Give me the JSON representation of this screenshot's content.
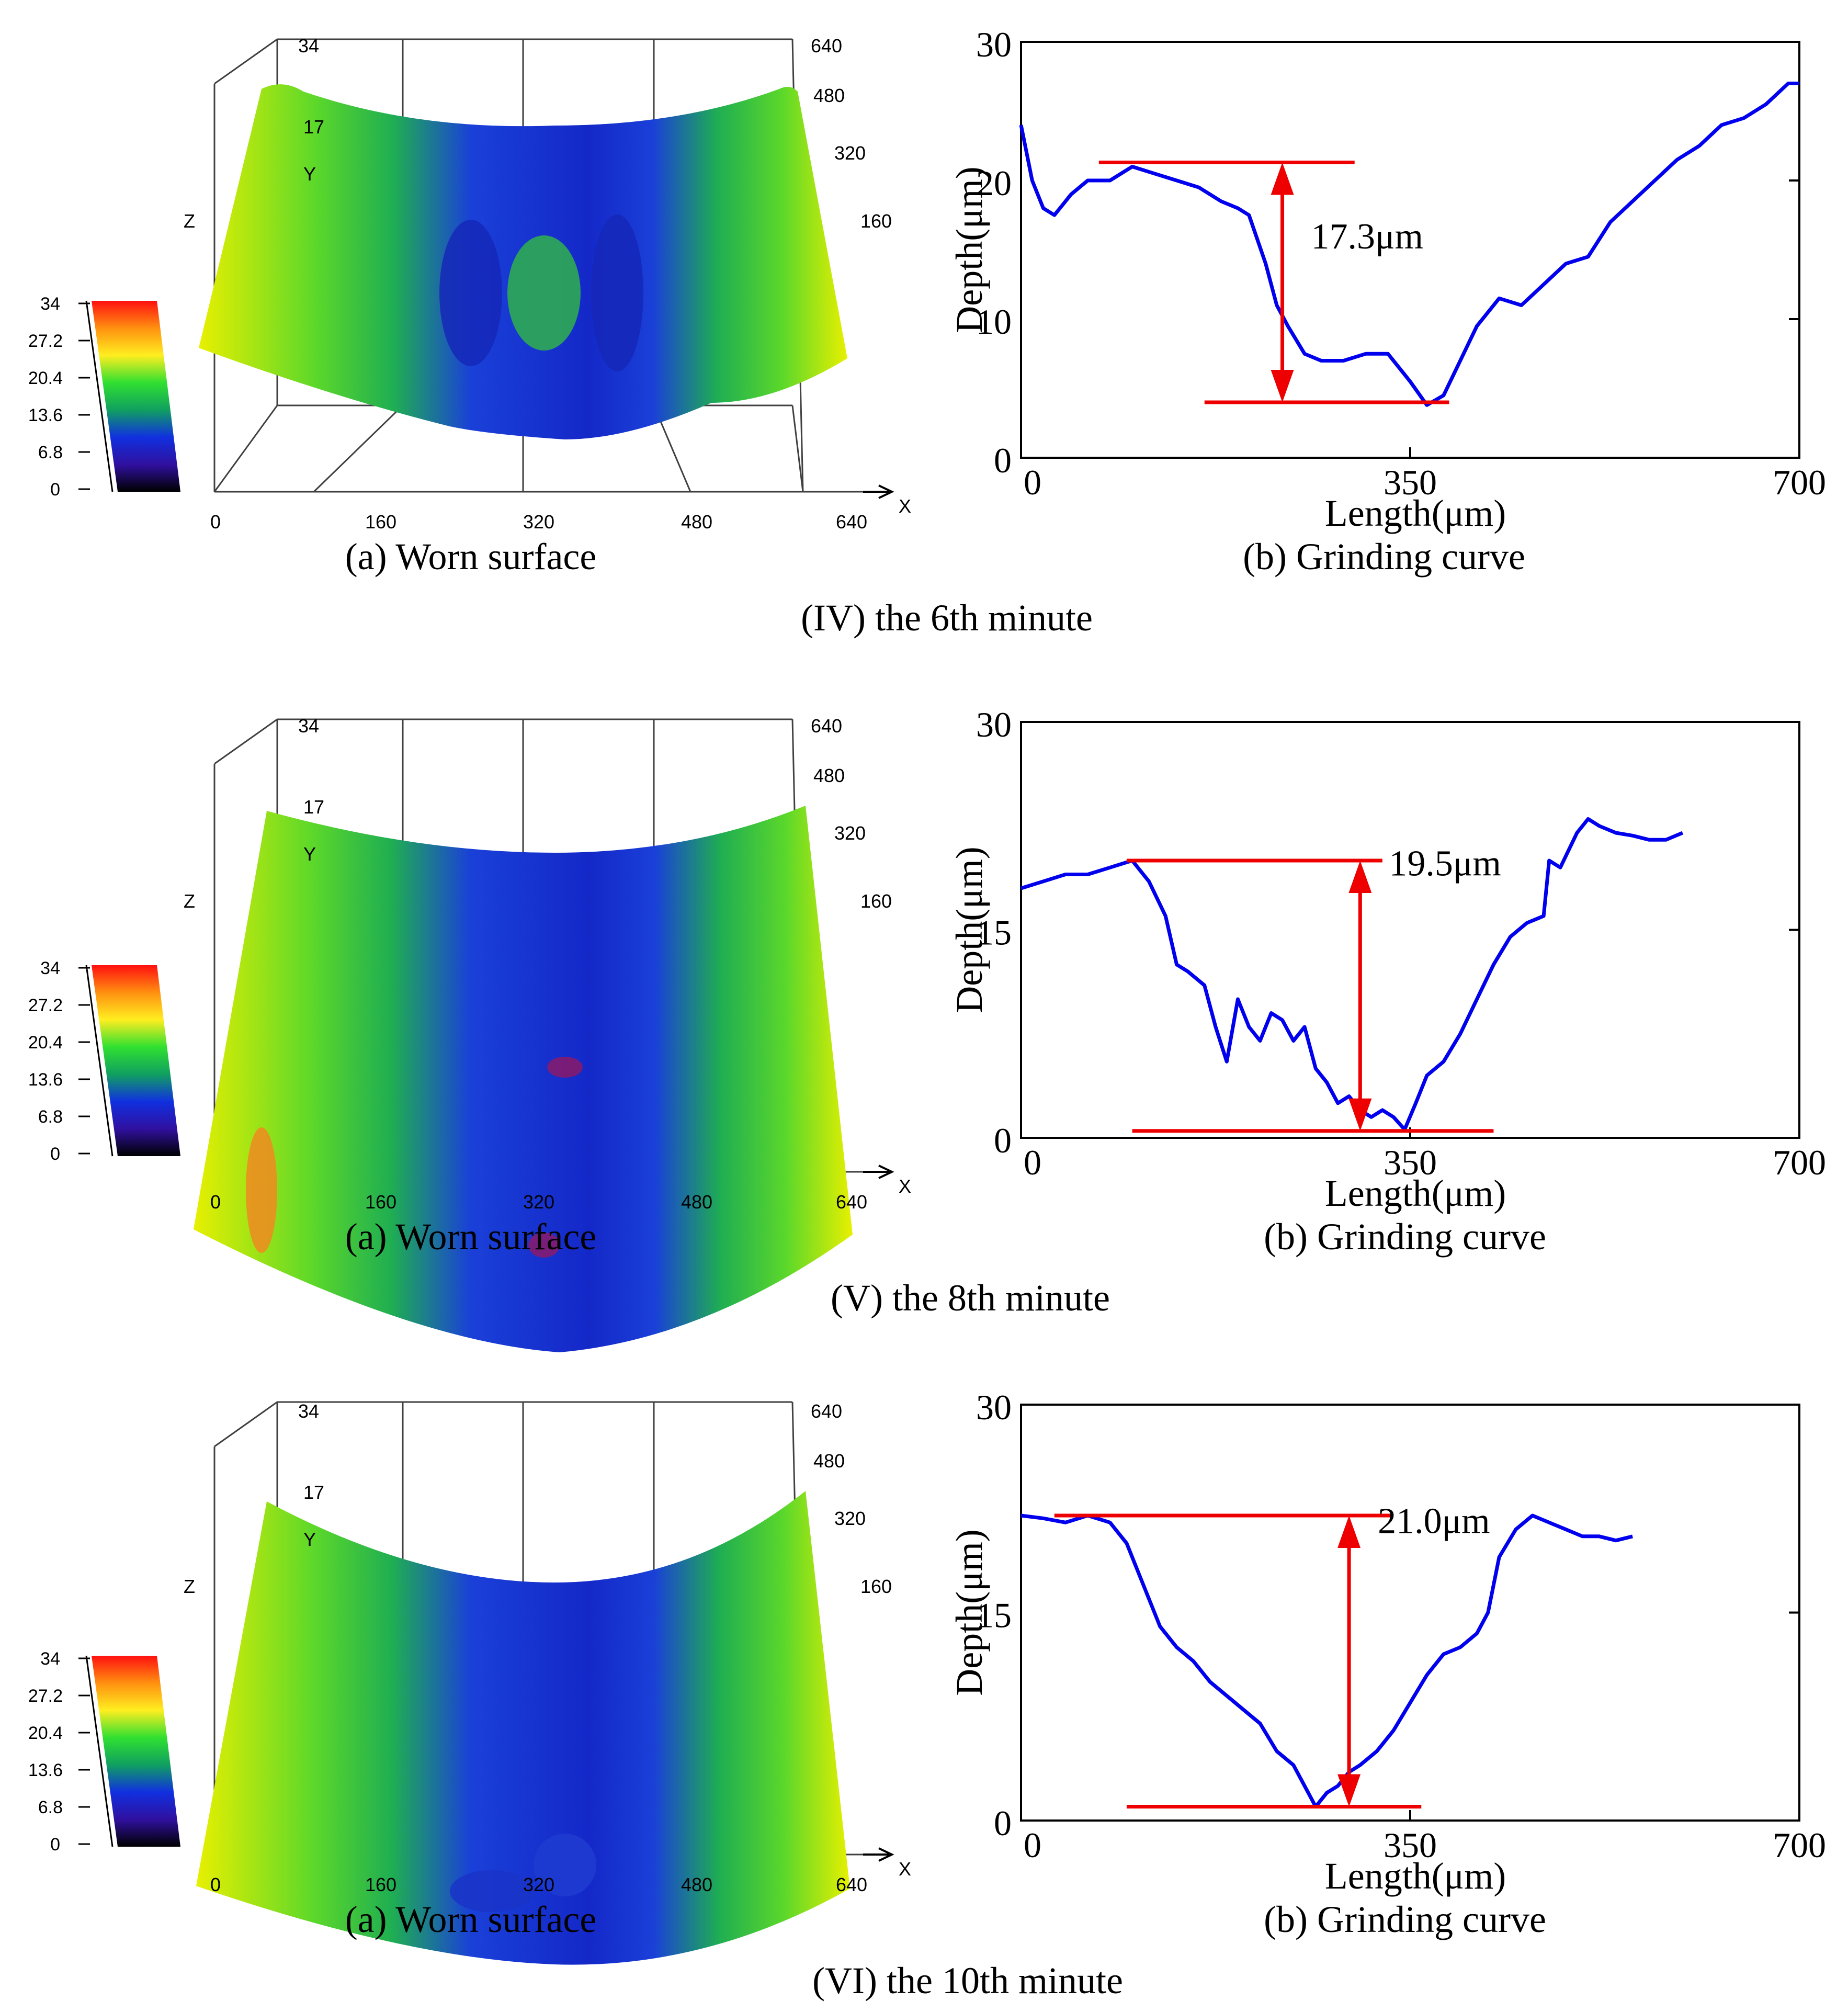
{
  "rows": [
    {
      "row_caption": "(IV) the 6th minute",
      "surface": {
        "caption": "(a) Worn surface",
        "z_top_label": "34",
        "z_mid_label": "17",
        "y_label": "Y",
        "z_label": "Z",
        "x_label": "X",
        "x_ticks": [
          "0",
          "160",
          "320",
          "480",
          "640"
        ],
        "y_ticks": [
          "640",
          "480",
          "320",
          "160"
        ],
        "colorbar_ticks": [
          "34",
          "27.2",
          "20.4",
          "13.6",
          "6.8",
          "0"
        ]
      },
      "curve": {
        "caption": "(b) Grinding curve",
        "annotation": "17.3μm"
      }
    },
    {
      "row_caption": "(V) the 8th minute",
      "surface": {
        "caption": "(a) Worn surface",
        "z_top_label": "34",
        "z_mid_label": "17",
        "y_label": "Y",
        "z_label": "Z",
        "x_label": "X",
        "x_ticks": [
          "0",
          "160",
          "320",
          "480",
          "640"
        ],
        "y_ticks": [
          "640",
          "480",
          "320",
          "160"
        ],
        "colorbar_ticks": [
          "34",
          "27.2",
          "20.4",
          "13.6",
          "6.8",
          "0"
        ]
      },
      "curve": {
        "caption": "(b) Grinding curve",
        "annotation": "19.5μm"
      }
    },
    {
      "row_caption": "(VI) the 10th minute",
      "surface": {
        "caption": "(a) Worn surface",
        "z_top_label": "34",
        "z_mid_label": "17",
        "y_label": "Y",
        "z_label": "Z",
        "x_label": "X",
        "x_ticks": [
          "0",
          "160",
          "320",
          "480",
          "640"
        ],
        "y_ticks": [
          "640",
          "480",
          "320",
          "160"
        ],
        "colorbar_ticks": [
          "34",
          "27.2",
          "20.4",
          "13.6",
          "6.8",
          "0"
        ]
      },
      "curve": {
        "caption": "(b) Grinding curve",
        "annotation": "21.0μm"
      }
    }
  ],
  "colors": {
    "curve": "#0000ee",
    "marker": "#ee0000",
    "surface_stops": [
      "#e8f000",
      "#5cd82a",
      "#1fae52",
      "#1a40d8",
      "#1428c8"
    ],
    "colorbar_stops": [
      "#ff1010",
      "#ff9010",
      "#ffee20",
      "#30e030",
      "#10a060",
      "#1030e0",
      "#3010a0",
      "#000000"
    ]
  },
  "chart_data": [
    {
      "type": "line",
      "title": "",
      "xlabel": "Length(μm)",
      "ylabel": "Depth(μm)",
      "xlim": [
        0,
        700
      ],
      "ylim": [
        0,
        30
      ],
      "x_ticks": [
        "0",
        "350",
        "700"
      ],
      "y_ticks": [
        "0",
        "10",
        "20",
        "30"
      ],
      "series": [
        {
          "name": "Grinding curve (6th minute)",
          "x": [
            0,
            10,
            20,
            30,
            45,
            60,
            80,
            100,
            120,
            140,
            160,
            180,
            195,
            205,
            220,
            230,
            240,
            255,
            270,
            290,
            310,
            330,
            350,
            365,
            380,
            395,
            410,
            430,
            450,
            470,
            490,
            510,
            530,
            550,
            570,
            590,
            610,
            630,
            650,
            670,
            690,
            700
          ],
          "y": [
            24,
            20,
            18,
            17.5,
            19,
            20,
            20,
            21,
            20.5,
            20,
            19.5,
            18.5,
            18,
            17.5,
            14,
            11,
            9.5,
            7.5,
            7,
            7,
            7.5,
            7.5,
            5.5,
            3.8,
            4.5,
            7,
            9.5,
            11.5,
            11,
            12.5,
            14,
            14.5,
            17,
            18.5,
            20,
            21.5,
            22.5,
            24,
            24.5,
            25.5,
            27,
            27
          ]
        }
      ],
      "annotation": {
        "label": "17.3μm",
        "upper_y": 21.3,
        "lower_y": 4.0,
        "upper_x_range": [
          70,
          300
        ],
        "lower_x_range": [
          165,
          385
        ],
        "arrow_x": 235
      }
    },
    {
      "type": "line",
      "title": "",
      "xlabel": "Length(μm)",
      "ylabel": "Depth(μm)",
      "xlim": [
        0,
        700
      ],
      "ylim": [
        0,
        30
      ],
      "x_ticks": [
        "0",
        "350",
        "700"
      ],
      "y_ticks": [
        "0",
        "15",
        "30"
      ],
      "series": [
        {
          "name": "Grinding curve (8th minute)",
          "x": [
            0,
            20,
            40,
            60,
            80,
            100,
            115,
            130,
            140,
            150,
            165,
            175,
            185,
            195,
            205,
            215,
            225,
            235,
            245,
            255,
            265,
            275,
            285,
            295,
            305,
            315,
            325,
            335,
            345,
            355,
            365,
            380,
            395,
            410,
            425,
            440,
            455,
            470,
            475,
            485,
            500,
            510,
            520,
            535,
            550,
            565,
            580,
            595
          ],
          "y": [
            18,
            18.5,
            19,
            19,
            19.5,
            20,
            18.5,
            16,
            12.5,
            12,
            11,
            8,
            5.5,
            10,
            8,
            7,
            9,
            8.5,
            7,
            8,
            5,
            4,
            2.5,
            3,
            2,
            1.5,
            2,
            1.5,
            0.6,
            2.5,
            4.5,
            5.5,
            7.5,
            10,
            12.5,
            14.5,
            15.5,
            16,
            20,
            19.5,
            22,
            23,
            22.5,
            22,
            21.8,
            21.5,
            21.5,
            22
          ]
        }
      ],
      "annotation": {
        "label": "19.5μm",
        "upper_y": 20.0,
        "lower_y": 0.5,
        "upper_x_range": [
          95,
          325
        ],
        "lower_x_range": [
          100,
          425
        ],
        "arrow_x": 305
      }
    },
    {
      "type": "line",
      "title": "",
      "xlabel": "Length(μm)",
      "ylabel": "Depth(μm)",
      "xlim": [
        0,
        700
      ],
      "ylim": [
        0,
        30
      ],
      "x_ticks": [
        "0",
        "350",
        "700"
      ],
      "y_ticks": [
        "0",
        "15",
        "30"
      ],
      "series": [
        {
          "name": "Grinding curve (10th minute)",
          "x": [
            0,
            20,
            40,
            60,
            80,
            95,
            110,
            125,
            140,
            155,
            170,
            185,
            200,
            215,
            230,
            245,
            255,
            265,
            275,
            285,
            295,
            305,
            320,
            335,
            350,
            365,
            380,
            395,
            410,
            420,
            430,
            445,
            460,
            475,
            490,
            505,
            520,
            535,
            550
          ],
          "y": [
            22,
            21.8,
            21.5,
            22,
            21.5,
            20,
            17,
            14,
            12.5,
            11.5,
            10,
            9,
            8,
            7,
            5,
            4,
            2.5,
            1,
            2,
            2.5,
            3.5,
            4,
            5,
            6.5,
            8.5,
            10.5,
            12,
            12.5,
            13.5,
            15,
            19,
            21,
            22,
            21.5,
            21,
            20.5,
            20.5,
            20.2,
            20.5
          ]
        }
      ],
      "annotation": {
        "label": "21.0μm",
        "upper_y": 22.0,
        "lower_y": 1.0,
        "upper_x_range": [
          30,
          335
        ],
        "lower_x_range": [
          95,
          360
        ],
        "arrow_x": 295
      }
    }
  ]
}
